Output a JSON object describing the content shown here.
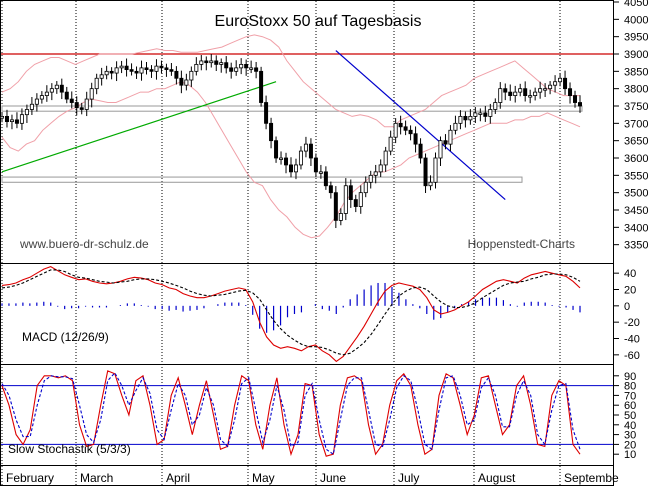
{
  "chart_data": [
    {
      "type": "candlestick",
      "title": "EuroStoxx 50 auf Tagesbasis",
      "source_left": "www.buero-dr-schulz.de",
      "source_right": "Hoppenstedt-Charts",
      "ylim": [
        3300,
        4050
      ],
      "yticks": [
        3350,
        3400,
        3450,
        3500,
        3550,
        3600,
        3650,
        3700,
        3750,
        3800,
        3850,
        3900,
        3950,
        4000,
        4050
      ],
      "months": [
        "February",
        "March",
        "April",
        "May",
        "June",
        "July",
        "August",
        "Septembe"
      ],
      "resistance_line": 3900,
      "support_box": {
        "y_top": 3750,
        "y_bottom": 3735,
        "x_from": 0,
        "x_to": 165
      },
      "lower_box": {
        "y_top": 3545,
        "y_bottom": 3530,
        "x_from": 0,
        "x_to": 140
      },
      "uptrend": {
        "from": {
          "t": 0,
          "y": 3560
        },
        "to": {
          "t": 55,
          "y": 3820
        },
        "color": "#00aa00"
      },
      "downtrend": {
        "from": {
          "t": 67,
          "y": 3910
        },
        "to": {
          "t": 101,
          "y": 3480
        },
        "color": "#0000cc"
      },
      "closes": [
        3720,
        3705,
        3710,
        3700,
        3725,
        3740,
        3755,
        3770,
        3780,
        3790,
        3800,
        3810,
        3790,
        3770,
        3760,
        3745,
        3740,
        3770,
        3800,
        3830,
        3840,
        3850,
        3845,
        3860,
        3865,
        3855,
        3850,
        3845,
        3860,
        3855,
        3850,
        3865,
        3860,
        3855,
        3850,
        3830,
        3810,
        3825,
        3850,
        3870,
        3880,
        3875,
        3880,
        3870,
        3875,
        3860,
        3850,
        3860,
        3870,
        3860,
        3860,
        3850,
        3760,
        3700,
        3650,
        3600,
        3600,
        3580,
        3560,
        3580,
        3620,
        3640,
        3600,
        3560,
        3560,
        3520,
        3500,
        3420,
        3440,
        3520,
        3480,
        3460,
        3500,
        3530,
        3550,
        3560,
        3580,
        3620,
        3660,
        3700,
        3690,
        3680,
        3670,
        3640,
        3600,
        3520,
        3530,
        3600,
        3650,
        3640,
        3680,
        3700,
        3720,
        3710,
        3720,
        3730,
        3730,
        3720,
        3740,
        3760,
        3800,
        3790,
        3780,
        3790,
        3800,
        3780,
        3780,
        3790,
        3800,
        3800,
        3810,
        3820,
        3830,
        3800,
        3780,
        3760,
        3750
      ],
      "bb_upper": [
        3790,
        3800,
        3820,
        3850,
        3870,
        3880,
        3890,
        3890,
        3880,
        3870,
        3880,
        3890,
        3900,
        3900,
        3900,
        3900,
        3900,
        3905,
        3910,
        3915,
        3910,
        3910,
        3905,
        3905,
        3905,
        3910,
        3915,
        3920,
        3930,
        3940,
        3950,
        3955,
        3950,
        3940,
        3920,
        3880,
        3850,
        3820,
        3800,
        3780,
        3760,
        3740,
        3730,
        3720,
        3725,
        3720,
        3710,
        3690,
        3690,
        3710,
        3720,
        3730,
        3740,
        3760,
        3780,
        3790,
        3800,
        3810,
        3830,
        3840,
        3850,
        3860,
        3870,
        3880,
        3860,
        3840,
        3820,
        3800,
        3790,
        3780,
        3780,
        3780
      ],
      "bb_lower": [
        3660,
        3630,
        3620,
        3640,
        3650,
        3680,
        3700,
        3720,
        3735,
        3745,
        3760,
        3770,
        3765,
        3760,
        3760,
        3770,
        3780,
        3790,
        3790,
        3800,
        3800,
        3810,
        3820,
        3810,
        3790,
        3760,
        3720,
        3680,
        3640,
        3600,
        3560,
        3530,
        3520,
        3480,
        3450,
        3430,
        3400,
        3380,
        3370,
        3375,
        3400,
        3430,
        3470,
        3500,
        3520,
        3540,
        3560,
        3560,
        3570,
        3580,
        3600,
        3610,
        3620,
        3630,
        3640,
        3650,
        3660,
        3670,
        3680,
        3690,
        3700,
        3700,
        3700,
        3710,
        3710,
        3720,
        3720,
        3730,
        3720,
        3710,
        3700,
        3690
      ]
    },
    {
      "type": "line",
      "title": "MACD (12/26/9)",
      "ylim": [
        -70,
        50
      ],
      "yticks": [
        -60,
        -40,
        -20,
        0,
        20,
        40
      ],
      "series": [
        {
          "name": "MACD",
          "color": "#dd0000",
          "values": [
            25,
            26,
            28,
            32,
            35,
            40,
            45,
            48,
            43,
            38,
            35,
            32,
            33,
            30,
            28,
            27,
            28,
            30,
            33,
            35,
            34,
            32,
            28,
            26,
            22,
            20,
            15,
            12,
            10,
            10,
            12,
            15,
            18,
            20,
            22,
            20,
            5,
            -20,
            -38,
            -48,
            -52,
            -50,
            -52,
            -55,
            -50,
            -48,
            -55,
            -60,
            -68,
            -62,
            -50,
            -38,
            -25,
            -10,
            5,
            18,
            25,
            28,
            26,
            24,
            20,
            10,
            -5,
            -10,
            -8,
            -5,
            0,
            5,
            12,
            20,
            25,
            30,
            32,
            30,
            28,
            34,
            38,
            40,
            42,
            40,
            38,
            36,
            30,
            22
          ]
        },
        {
          "name": "Signal",
          "color": "#000000",
          "values": [
            22,
            23,
            25,
            28,
            32,
            36,
            40,
            44,
            44,
            42,
            38,
            35,
            34,
            32,
            30,
            29,
            28,
            29,
            30,
            32,
            33,
            33,
            32,
            30,
            28,
            25,
            22,
            18,
            15,
            13,
            12,
            13,
            14,
            16,
            18,
            19,
            16,
            8,
            -5,
            -18,
            -28,
            -36,
            -42,
            -47,
            -50,
            -50,
            -51,
            -54,
            -58,
            -60,
            -58,
            -52,
            -45,
            -35,
            -23,
            -10,
            2,
            12,
            18,
            22,
            23,
            20,
            12,
            5,
            0,
            -2,
            -2,
            0,
            4,
            10,
            15,
            20,
            25,
            28,
            29,
            30,
            33,
            35,
            38,
            39,
            39,
            38,
            35,
            30
          ]
        }
      ],
      "histogram_color": "#0000cc",
      "histogram": [
        3,
        3,
        3,
        4,
        3,
        4,
        5,
        4,
        -1,
        -4,
        -3,
        -3,
        -1,
        -2,
        -2,
        -2,
        0,
        1,
        3,
        3,
        1,
        -1,
        -4,
        -4,
        -6,
        -5,
        -7,
        -6,
        -5,
        -3,
        0,
        2,
        4,
        4,
        4,
        1,
        -11,
        -28,
        -33,
        -30,
        -24,
        -14,
        -10,
        -8,
        0,
        2,
        -4,
        -6,
        -10,
        -2,
        8,
        14,
        20,
        25,
        28,
        28,
        23,
        16,
        8,
        2,
        -3,
        -10,
        -17,
        -15,
        -8,
        -3,
        2,
        5,
        8,
        10,
        10,
        10,
        7,
        2,
        -1,
        4,
        5,
        5,
        4,
        1,
        -1,
        -2,
        -5,
        -8
      ]
    },
    {
      "type": "line",
      "title": "Slow Stochastik (5/3/3)",
      "ylim": [
        0,
        100
      ],
      "yticks": [
        10,
        20,
        30,
        40,
        50,
        60,
        70,
        80,
        90
      ],
      "levels": [
        20,
        80
      ],
      "series": [
        {
          "name": "%K",
          "color": "#dd0000",
          "values": [
            80,
            60,
            30,
            20,
            35,
            80,
            90,
            90,
            88,
            90,
            85,
            40,
            18,
            20,
            60,
            95,
            92,
            70,
            50,
            85,
            90,
            60,
            20,
            25,
            70,
            88,
            60,
            30,
            60,
            85,
            50,
            15,
            18,
            60,
            90,
            85,
            40,
            15,
            60,
            88,
            40,
            10,
            30,
            82,
            80,
            30,
            8,
            10,
            60,
            88,
            90,
            85,
            40,
            10,
            20,
            60,
            85,
            92,
            80,
            40,
            10,
            15,
            70,
            92,
            88,
            60,
            30,
            50,
            88,
            90,
            60,
            30,
            40,
            80,
            90,
            60,
            20,
            18,
            70,
            85,
            80,
            20,
            10
          ]
        },
        {
          "name": "%D",
          "color": "#0000cc",
          "values": [
            82,
            70,
            45,
            28,
            28,
            60,
            85,
            90,
            89,
            89,
            87,
            60,
            30,
            22,
            45,
            85,
            93,
            80,
            60,
            75,
            88,
            72,
            35,
            25,
            55,
            82,
            70,
            40,
            50,
            78,
            60,
            25,
            18,
            45,
            82,
            88,
            55,
            22,
            45,
            80,
            55,
            18,
            22,
            70,
            82,
            45,
            15,
            10,
            45,
            80,
            88,
            88,
            55,
            20,
            18,
            45,
            78,
            90,
            85,
            55,
            20,
            15,
            55,
            88,
            90,
            70,
            40,
            45,
            78,
            88,
            70,
            38,
            38,
            70,
            85,
            70,
            30,
            20,
            55,
            80,
            82,
            35,
            15
          ]
        }
      ]
    }
  ]
}
